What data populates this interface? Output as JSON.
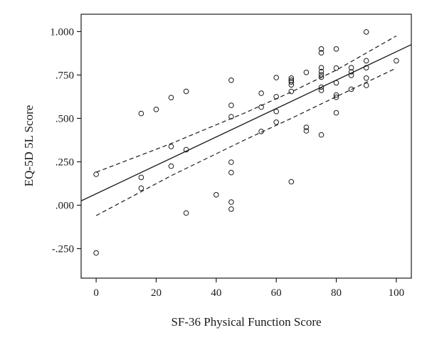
{
  "chart_data": {
    "type": "scatter",
    "title": "",
    "xlabel": "SF-36 Physical Function Score",
    "ylabel": "EQ-5D 5L Score",
    "xlim": [
      -5,
      105
    ],
    "ylim": [
      -0.42,
      1.1
    ],
    "grid": false,
    "x_ticks": [
      0,
      20,
      40,
      60,
      80,
      100
    ],
    "x_tick_labels": [
      "0",
      "20",
      "40",
      "60",
      "80",
      "100"
    ],
    "y_ticks": [
      1.0,
      0.75,
      0.5,
      0.25,
      0.0,
      -0.25
    ],
    "y_tick_labels": [
      "1.000",
      ".750",
      ".500",
      ".250",
      ".000",
      "-.250"
    ],
    "colors": {
      "marker": "#1a1a1a",
      "line": "#1a1a1a",
      "axis": "#1a1a1a"
    },
    "points": [
      [
        0,
        0.178
      ],
      [
        0,
        -0.275
      ],
      [
        15,
        0.528
      ],
      [
        15,
        0.16
      ],
      [
        15,
        0.098
      ],
      [
        20,
        0.552
      ],
      [
        25,
        0.62
      ],
      [
        25,
        0.338
      ],
      [
        25,
        0.225
      ],
      [
        30,
        0.656
      ],
      [
        30,
        0.32
      ],
      [
        30,
        -0.045
      ],
      [
        40,
        0.06
      ],
      [
        45,
        0.72
      ],
      [
        45,
        0.575
      ],
      [
        45,
        0.51
      ],
      [
        45,
        0.248
      ],
      [
        45,
        0.188
      ],
      [
        45,
        0.018
      ],
      [
        45,
        -0.022
      ],
      [
        55,
        0.645
      ],
      [
        55,
        0.565
      ],
      [
        55,
        0.425
      ],
      [
        60,
        0.735
      ],
      [
        60,
        0.625
      ],
      [
        60,
        0.54
      ],
      [
        60,
        0.478
      ],
      [
        65,
        0.732
      ],
      [
        65,
        0.72
      ],
      [
        65,
        0.71
      ],
      [
        65,
        0.693
      ],
      [
        65,
        0.655
      ],
      [
        65,
        0.135
      ],
      [
        70,
        0.765
      ],
      [
        70,
        0.448
      ],
      [
        70,
        0.428
      ],
      [
        75,
        0.9
      ],
      [
        75,
        0.878
      ],
      [
        75,
        0.792
      ],
      [
        75,
        0.77
      ],
      [
        75,
        0.752
      ],
      [
        75,
        0.738
      ],
      [
        75,
        0.68
      ],
      [
        75,
        0.662
      ],
      [
        75,
        0.405
      ],
      [
        80,
        0.9
      ],
      [
        80,
        0.79
      ],
      [
        80,
        0.705
      ],
      [
        80,
        0.635
      ],
      [
        80,
        0.622
      ],
      [
        80,
        0.532
      ],
      [
        85,
        0.792
      ],
      [
        85,
        0.768
      ],
      [
        85,
        0.748
      ],
      [
        85,
        0.668
      ],
      [
        90,
        0.998
      ],
      [
        90,
        0.832
      ],
      [
        90,
        0.792
      ],
      [
        90,
        0.732
      ],
      [
        90,
        0.69
      ],
      [
        100,
        0.832
      ]
    ],
    "fit_line": {
      "x": [
        -5,
        105
      ],
      "y": [
        0.025,
        0.925
      ]
    },
    "ci_upper": {
      "x": [
        0,
        25,
        50,
        65,
        80,
        100
      ],
      "y": [
        0.19,
        0.355,
        0.535,
        0.652,
        0.778,
        0.975
      ]
    },
    "ci_lower": {
      "x": [
        0,
        25,
        50,
        65,
        80,
        100
      ],
      "y": [
        -0.06,
        0.17,
        0.38,
        0.5,
        0.625,
        0.79
      ]
    }
  }
}
